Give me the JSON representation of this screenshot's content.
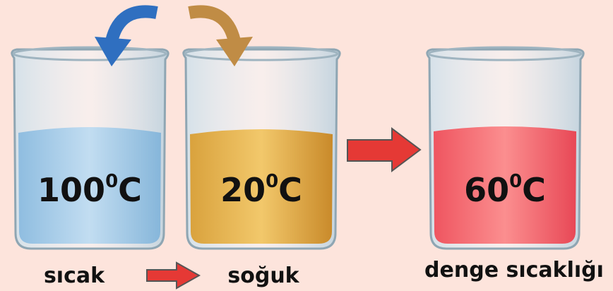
{
  "beakers": [
    {
      "number": "100",
      "sup": "0",
      "unit": "C"
    },
    {
      "number": "20",
      "sup": "0",
      "unit": "C"
    },
    {
      "number": "60",
      "sup": "0",
      "unit": "C"
    }
  ],
  "labels": [
    "sıcak",
    "soğuk",
    "denge sıcaklığı"
  ]
}
